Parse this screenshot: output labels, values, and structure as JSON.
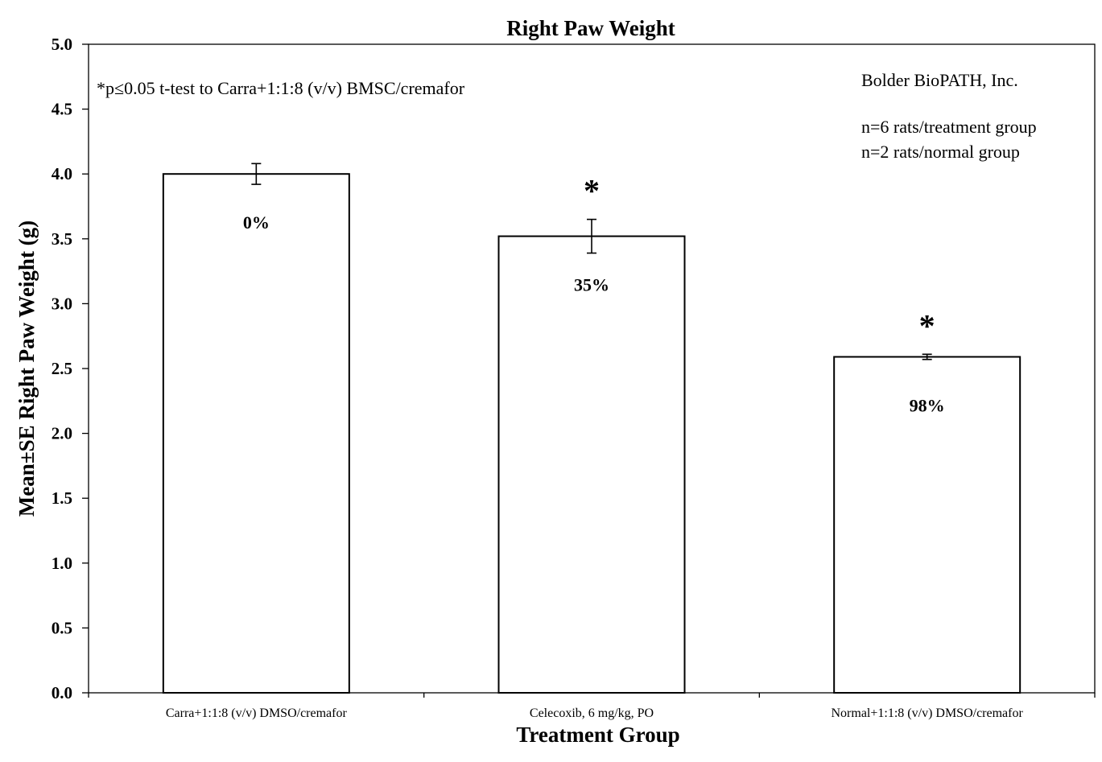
{
  "chart_data": {
    "type": "bar",
    "title": "Right Paw Weight",
    "xlabel": "Treatment Group",
    "ylabel": "Mean±SE Right Paw Weight (g)",
    "ylim": [
      0,
      5
    ],
    "yticks": [
      "0.0",
      "0.5",
      "1.0",
      "1.5",
      "2.0",
      "2.5",
      "3.0",
      "3.5",
      "4.0",
      "4.5",
      "5.0"
    ],
    "categories": [
      "Carra+1:1:8 (v/v) DMSO/cremafor",
      "Celecoxib, 6 mg/kg, PO",
      "Normal+1:1:8 (v/v) DMSO/cremafor"
    ],
    "values": [
      4.0,
      3.52,
      2.59
    ],
    "errors": [
      0.08,
      0.13,
      0.02
    ],
    "bar_labels": [
      "0%",
      "35%",
      "98%"
    ],
    "significance_markers": [
      "",
      "*",
      "*"
    ],
    "grid": false,
    "bar_fill": "#ffffff",
    "bar_stroke": "#000000"
  },
  "annotations": {
    "footnote": "*p≤0.05 t-test to Carra+1:1:8 (v/v) BMSC/cremafor",
    "lab": "Bolder BioPATH, Inc.",
    "n_treatment": "n=6 rats/treatment group",
    "n_normal": "n=2 rats/normal group"
  }
}
